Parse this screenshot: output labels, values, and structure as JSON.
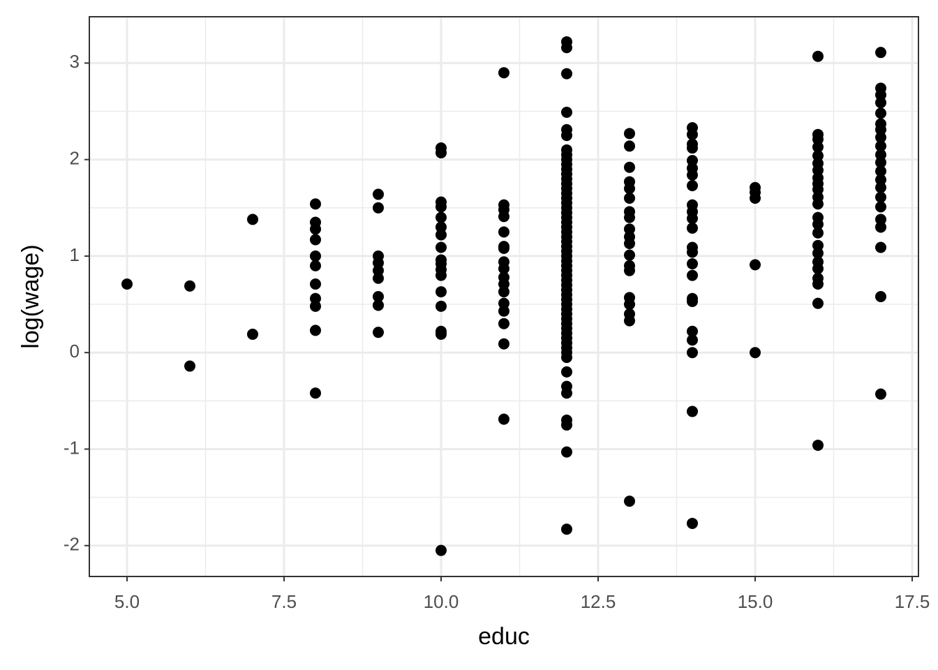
{
  "chart_data": {
    "type": "scatter",
    "xlabel": "educ",
    "ylabel": "log(wage)",
    "color": "#000000",
    "grid": true,
    "xlim": [
      4.4,
      17.6
    ],
    "ylim": [
      -2.32,
      3.48
    ],
    "xticks": [
      {
        "value": 5,
        "label": "5.0"
      },
      {
        "value": 7.5,
        "label": "7.5"
      },
      {
        "value": 10,
        "label": "10.0"
      },
      {
        "value": 12.5,
        "label": "12.5"
      },
      {
        "value": 15,
        "label": "15.0"
      },
      {
        "value": 17.5,
        "label": "17.5"
      }
    ],
    "yticks": [
      -2,
      -1,
      0,
      1,
      2,
      3
    ],
    "x": [
      5,
      6,
      6,
      7,
      7,
      8,
      8,
      8,
      8,
      8,
      8,
      8,
      8,
      8,
      8,
      8,
      9,
      9,
      9,
      9,
      9,
      9,
      9,
      9,
      9,
      10,
      10,
      10,
      10,
      10,
      10,
      10,
      10,
      10,
      10,
      10,
      10,
      10,
      10,
      10,
      10,
      10,
      11,
      11,
      11,
      11,
      11,
      11,
      11,
      11,
      11,
      11,
      11,
      11,
      11,
      11,
      11,
      11,
      11,
      12,
      12,
      12,
      12,
      12,
      12,
      12,
      12,
      12,
      12,
      12,
      12,
      12,
      12,
      12,
      12,
      12,
      12,
      12,
      12,
      12,
      12,
      12,
      12,
      12,
      12,
      12,
      12,
      12,
      12,
      12,
      12,
      12,
      12,
      12,
      12,
      12,
      12,
      12,
      12,
      12,
      12,
      12,
      12,
      12,
      12,
      12,
      12,
      12,
      12,
      12,
      12,
      12,
      12,
      12,
      12,
      12,
      13,
      13,
      13,
      13,
      13,
      13,
      13,
      13,
      13,
      13,
      13,
      13,
      13,
      13,
      13,
      13,
      13,
      13,
      13,
      14,
      14,
      14,
      14,
      14,
      14,
      14,
      14,
      14,
      14,
      14,
      14,
      14,
      14,
      14,
      14,
      14,
      14,
      14,
      14,
      14,
      14,
      14,
      15,
      15,
      15,
      15,
      15,
      16,
      16,
      16,
      16,
      16,
      16,
      16,
      16,
      16,
      16,
      16,
      16,
      16,
      16,
      16,
      16,
      16,
      16,
      16,
      16,
      16,
      16,
      16,
      17,
      17,
      17,
      17,
      17,
      17,
      17,
      17,
      17,
      17,
      17,
      17,
      17,
      17,
      17,
      17,
      17,
      17,
      17,
      17,
      17
    ],
    "y": [
      0.71,
      0.69,
      -0.14,
      1.38,
      0.19,
      1.54,
      1.35,
      1.28,
      1.17,
      1.0,
      0.9,
      0.71,
      0.56,
      0.48,
      0.23,
      -0.42,
      1.64,
      1.5,
      1.0,
      0.93,
      0.85,
      0.77,
      0.58,
      0.49,
      0.21,
      2.12,
      2.07,
      1.56,
      1.51,
      1.4,
      1.3,
      1.22,
      1.09,
      0.96,
      0.92,
      0.86,
      0.8,
      0.63,
      0.48,
      0.22,
      0.19,
      -2.05,
      2.9,
      1.53,
      1.48,
      1.41,
      1.25,
      1.1,
      1.08,
      0.94,
      0.87,
      0.78,
      0.71,
      0.63,
      0.51,
      0.43,
      0.3,
      0.09,
      -0.69,
      3.22,
      3.16,
      2.89,
      2.49,
      2.31,
      2.25,
      2.1,
      2.05,
      2.0,
      1.95,
      1.9,
      1.85,
      1.8,
      1.75,
      1.7,
      1.65,
      1.6,
      1.55,
      1.5,
      1.45,
      1.4,
      1.35,
      1.3,
      1.25,
      1.2,
      1.15,
      1.1,
      1.05,
      1.0,
      0.95,
      0.9,
      0.85,
      0.8,
      0.75,
      0.7,
      0.65,
      0.6,
      0.55,
      0.5,
      0.45,
      0.4,
      0.35,
      0.3,
      0.25,
      0.2,
      0.15,
      0.1,
      0.05,
      0.0,
      -0.05,
      -0.2,
      -0.35,
      -0.42,
      -0.7,
      -0.75,
      -1.03,
      -1.83,
      2.27,
      2.14,
      1.92,
      1.77,
      1.7,
      1.6,
      1.46,
      1.4,
      1.28,
      1.2,
      1.13,
      1.01,
      0.9,
      0.85,
      0.57,
      0.5,
      0.4,
      0.33,
      -1.54,
      2.33,
      2.26,
      2.16,
      2.12,
      1.99,
      1.91,
      1.84,
      1.73,
      1.53,
      1.46,
      1.39,
      1.29,
      1.09,
      1.04,
      0.92,
      0.8,
      0.56,
      0.53,
      0.22,
      0.13,
      0.0,
      -0.61,
      -1.77,
      1.71,
      1.66,
      1.6,
      0.91,
      0.0,
      3.07,
      2.26,
      2.21,
      2.13,
      2.04,
      1.96,
      1.89,
      1.81,
      1.75,
      1.69,
      1.61,
      1.54,
      1.4,
      1.33,
      1.24,
      1.11,
      1.03,
      0.94,
      0.87,
      0.77,
      0.71,
      0.51,
      -0.96,
      3.11,
      2.74,
      2.67,
      2.59,
      2.48,
      2.37,
      2.31,
      2.23,
      2.14,
      2.05,
      1.97,
      1.88,
      1.79,
      1.71,
      1.61,
      1.51,
      1.38,
      1.3,
      1.09,
      0.58,
      -0.43
    ]
  }
}
